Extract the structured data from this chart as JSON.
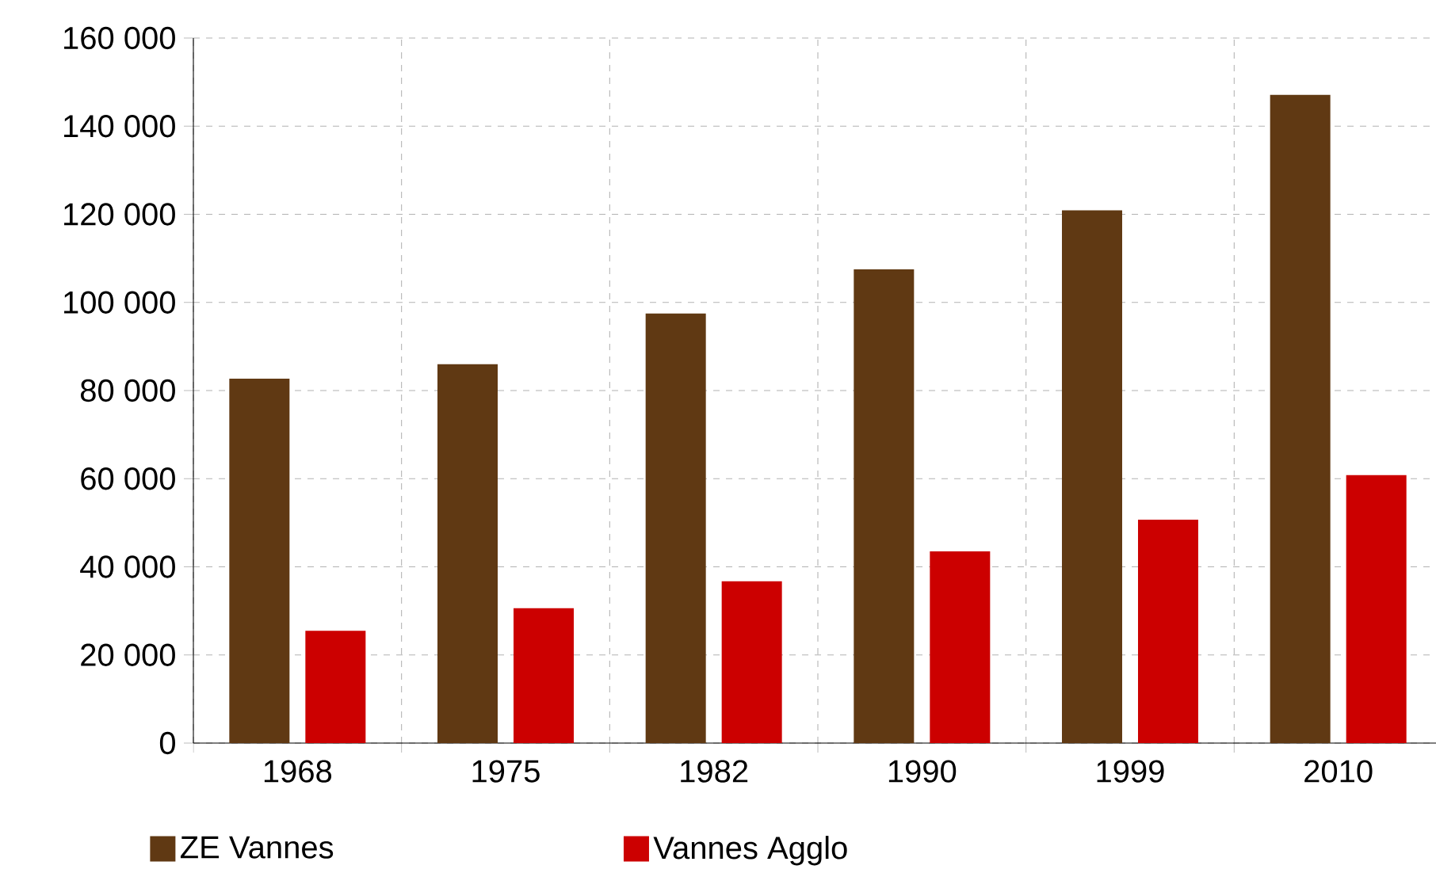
{
  "chart_data": {
    "type": "bar",
    "categories": [
      "1968",
      "1975",
      "1982",
      "1990",
      "1999",
      "2010"
    ],
    "series": [
      {
        "name": "ZE Vannes",
        "color": "#603913",
        "values": [
          82700,
          86000,
          97500,
          107500,
          120900,
          147100
        ]
      },
      {
        "name": "Vannes Agglo",
        "color": "#cc0000",
        "values": [
          25500,
          30600,
          36700,
          43500,
          50700,
          60800
        ]
      }
    ],
    "ylim": [
      0,
      160000
    ],
    "yticks": [
      {
        "value": 0,
        "label": "0"
      },
      {
        "value": 20000,
        "label": "20 000"
      },
      {
        "value": 40000,
        "label": "40 000"
      },
      {
        "value": 60000,
        "label": "60 000"
      },
      {
        "value": 80000,
        "label": "80 000"
      },
      {
        "value": 100000,
        "label": "100 000"
      },
      {
        "value": 120000,
        "label": "120 000"
      },
      {
        "value": 140000,
        "label": "140 000"
      },
      {
        "value": 160000,
        "label": "160 000"
      }
    ],
    "grid": true,
    "legend": "bottom"
  }
}
